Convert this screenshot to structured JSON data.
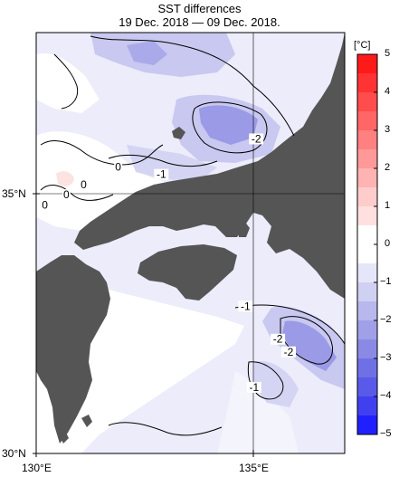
{
  "title": "SST differences",
  "subtitle": "19 Dec. 2018 — 09 Dec. 2018.",
  "axes": {
    "lat_labels": [
      "35°N",
      "30°N"
    ],
    "lon_labels": [
      "130°E",
      "135°E"
    ]
  },
  "colorbar": {
    "unit": "[°C]",
    "ticks": [
      "5",
      "4",
      "3",
      "2",
      "1",
      "0",
      "−1",
      "−2",
      "−3",
      "−4",
      "−5"
    ],
    "colors": [
      "#ff1a1a",
      "#ff4d4d",
      "#ff8080",
      "#ffb3b3",
      "#ffd9d9",
      "#ffffff",
      "#dcdcf5",
      "#b3b3ee",
      "#8080e6",
      "#4d4dee",
      "#1a1aff"
    ]
  },
  "contour_labels": [
    {
      "text": "-2",
      "lon": 134.95,
      "lat": 36.15
    },
    {
      "text": "-1",
      "lon": 132.75,
      "lat": 35.45
    },
    {
      "text": "0",
      "lon": 131.75,
      "lat": 35.6
    },
    {
      "text": "0",
      "lon": 130.95,
      "lat": 35.25
    },
    {
      "text": "0",
      "lon": 130.55,
      "lat": 35.05
    },
    {
      "text": "0",
      "lon": 130.05,
      "lat": 34.85
    },
    {
      "text": "-1",
      "lon": 134.7,
      "lat": 32.85
    },
    {
      "text": "-2",
      "lon": 135.45,
      "lat": 32.2
    },
    {
      "text": "-2",
      "lon": 135.7,
      "lat": 31.95
    },
    {
      "text": "-1",
      "lon": 134.9,
      "lat": 31.25
    }
  ],
  "colors": {
    "land": "#555555",
    "sea_neutral": "#ffffff",
    "cooling_light": "#e8e8fa",
    "cooling_mid": "#c8c8f0",
    "cooling_strong": "#9a9ae6",
    "warming_light": "#fde2e2"
  }
}
